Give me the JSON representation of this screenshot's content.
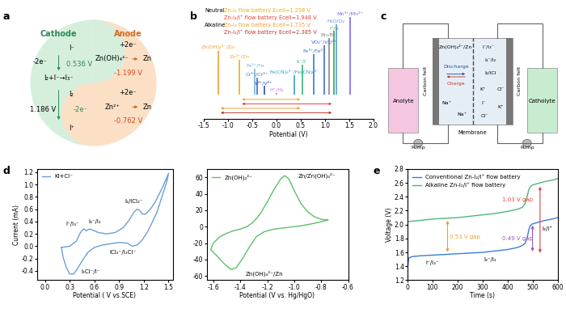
{
  "panel_labels": [
    "a",
    "b",
    "c",
    "d",
    "e"
  ],
  "panel_a": {
    "cathode": {
      "title": "Cathode",
      "items": [
        "I⁻",
        "-2e⁻",
        "0.536 V",
        "I₂+I⁻→I₃⁻",
        "I₂",
        "-2e⁻",
        "1.186 V",
        "I⁺"
      ]
    },
    "anode": {
      "title": "Anode",
      "items": [
        "+2e⁻",
        "Zn(OH)₄²⁻",
        "Zn",
        "-1.199 V",
        "+2e⁻",
        "Zn²⁺",
        "Zn",
        "-0.762 V"
      ]
    }
  },
  "panel_c": {
    "tanks": [
      "Anolyte",
      "Catholyte"
    ],
    "electrodes": [
      "Carbon felt",
      "Carbon felt"
    ],
    "couples": [
      "Zn(OH)₄²⁻/Zn",
      "I⁻/I₃⁻",
      "I₃⁻/I₂",
      "I₂/ICl"
    ],
    "modes": [
      "Discharge",
      "Charge"
    ],
    "ions": [
      "Na⁺",
      "Na⁺",
      "K⁺",
      "K⁺",
      "Cl⁻",
      "Cl⁻",
      "I⁻"
    ],
    "membrane": "Membrane",
    "pumps": [
      "Pump",
      "Pump"
    ]
  },
  "chart_data": [
    {
      "type": "potential_lines",
      "xlabel": "Potential (V)",
      "xlim": [
        -1.5,
        2.0
      ],
      "xticks": [
        -1.5,
        -1.0,
        -0.5,
        0.0,
        0.5,
        1.0,
        1.5,
        2.0
      ],
      "tick_labels": "x",
      "couples": [
        {
          "label": "Zn(OH)₄²⁻/Zn",
          "value": -1.199,
          "color": "#f0a030"
        },
        {
          "label": "Zn²⁺/Zn",
          "value": -0.762,
          "color": "#e8b020"
        },
        {
          "label": "Fe²⁺/Fe",
          "value": -0.447,
          "color": "#7fb3e0"
        },
        {
          "label": "Cr³⁺/Cr²⁺",
          "value": -0.407,
          "color": "#3b6fc9"
        },
        {
          "label": "V³⁺/V²⁺",
          "value": -0.255,
          "color": "#1f4eb4"
        },
        {
          "label": "H⁺/H₂",
          "value": 0.0,
          "color": "#c878d8"
        },
        {
          "label": "Fe(CN)₆³⁻/Fe(CN)₆⁴⁻",
          "value": 0.361,
          "color": "#30a0d0"
        },
        {
          "label": "I₃⁻/I⁻",
          "value": 0.536,
          "color": "#3cb371"
        },
        {
          "label": "Fe³⁺/Fe²⁺",
          "value": 0.771,
          "color": "#2e7fd0"
        },
        {
          "label": "VO₂⁺/VO²⁺",
          "value": 0.991,
          "color": "#4169e1"
        },
        {
          "label": "Br₂/Br⁻",
          "value": 1.087,
          "color": "#888888"
        },
        {
          "label": "I⁺/I₂",
          "value": 1.186,
          "color": "#2ca25f"
        },
        {
          "label": "H₂O/O₂",
          "value": 1.23,
          "color": "#5a9bd5"
        },
        {
          "label": "Mn³⁺/Mn²⁺",
          "value": 1.51,
          "color": "#7b68ee"
        }
      ],
      "groups": [
        {
          "name": "Neutral",
          "batteries": [
            {
              "text": "Zn-I₂ flow battery Ecell=1.298 V",
              "from": -0.762,
              "to": 0.536,
              "color": "#e8b020"
            },
            {
              "text": "Zn-I₂/I⁺ flow battery Ecell=1.948 V",
              "from": -0.762,
              "to": 1.186,
              "color": "#e8403a"
            }
          ]
        },
        {
          "name": "Alkaline",
          "batteries": [
            {
              "text": "Zn-I₂ flow battery Ecell=1.735 V",
              "from": -1.199,
              "to": 0.536,
              "color": "#f0a030"
            },
            {
              "text": "Zn-I₂/I⁺ flow battery Ecell=2.385 V",
              "from": -1.199,
              "to": 1.186,
              "color": "#c0392b"
            }
          ]
        }
      ]
    },
    {
      "type": "line",
      "xlabel": "Potential ( V vs.SCE)",
      "ylabel": "Current (mA)",
      "xlim": [
        -0.1,
        1.55
      ],
      "xticks": [
        0.0,
        0.3,
        0.6,
        0.9,
        1.2,
        1.5
      ],
      "ylim": [
        -0.55,
        1.25
      ],
      "yticks": [
        -0.4,
        -0.2,
        0.0,
        0.2,
        0.4,
        0.6,
        0.8,
        1.0,
        1.2
      ],
      "legend": "upper left",
      "annotations": [
        "I⁻/I₃⁻",
        "I₃⁻/I₂",
        "I₂/ICl₂⁻",
        "ICl₂⁻/I₂Cl⁻",
        "I₂Cl⁻/I⁻"
      ],
      "series": [
        {
          "name": "KI+Cl⁻",
          "color": "#6a9fd8",
          "x": [
            0.2,
            0.3,
            0.38,
            0.43,
            0.47,
            0.5,
            0.54,
            0.58,
            0.65,
            0.75,
            0.85,
            0.95,
            1.02,
            1.08,
            1.12,
            1.15,
            1.18,
            1.22,
            1.28,
            1.34,
            1.4,
            1.45,
            1.5,
            1.48,
            1.42,
            1.36,
            1.3,
            1.24,
            1.18,
            1.12,
            1.06,
            1.0,
            0.9,
            0.8,
            0.7,
            0.6,
            0.52,
            0.46,
            0.4,
            0.35,
            0.3,
            0.26,
            0.22,
            0.2
          ],
          "values": [
            -0.02,
            0.0,
            0.08,
            0.22,
            0.28,
            0.25,
            0.28,
            0.26,
            0.22,
            0.2,
            0.22,
            0.3,
            0.42,
            0.55,
            0.6,
            0.58,
            0.52,
            0.52,
            0.6,
            0.72,
            0.88,
            1.02,
            1.18,
            1.05,
            0.8,
            0.55,
            0.38,
            0.22,
            0.1,
            0.02,
            0.0,
            0.05,
            0.06,
            0.04,
            0.02,
            -0.02,
            -0.1,
            -0.22,
            -0.35,
            -0.45,
            -0.45,
            -0.35,
            -0.18,
            -0.02
          ]
        }
      ]
    },
    {
      "type": "line",
      "xlabel": "Potential (V vs. Hg/HgO)",
      "xlim": [
        -1.65,
        -0.6
      ],
      "xticks": [
        -1.6,
        -1.4,
        -1.2,
        -1.0,
        -0.8,
        -0.6
      ],
      "ylim": [
        -65,
        70
      ],
      "yticks": [
        -60,
        -40,
        -20,
        0,
        20,
        40,
        60
      ],
      "legend": "upper left",
      "annotations": [
        "Zn/Zn(OH)₄²⁻",
        "Zn(OH)₄²⁻/Zn"
      ],
      "series": [
        {
          "name": "Zn(OH)₄²⁻",
          "color": "#5cc06a",
          "x": [
            -0.75,
            -0.85,
            -0.95,
            -1.05,
            -1.15,
            -1.22,
            -1.28,
            -1.33,
            -1.38,
            -1.43,
            -1.47,
            -1.52,
            -1.57,
            -1.62,
            -1.6,
            -1.55,
            -1.5,
            -1.45,
            -1.4,
            -1.35,
            -1.3,
            -1.25,
            -1.2,
            -1.15,
            -1.1,
            -1.07,
            -1.04,
            -1.0,
            -0.95,
            -0.9,
            -0.85,
            -0.8,
            -0.75
          ],
          "values": [
            8,
            4,
            1,
            -1,
            -3,
            -6,
            -12,
            -24,
            -38,
            -50,
            -52,
            -45,
            -36,
            -28,
            -20,
            -12,
            -8,
            -5,
            -3,
            0,
            6,
            16,
            30,
            45,
            58,
            62,
            58,
            44,
            28,
            18,
            12,
            9,
            8
          ]
        }
      ]
    },
    {
      "type": "line",
      "xlabel": "Time (s)",
      "ylabel": "Voltage (V)",
      "xlim": [
        0,
        600
      ],
      "xticks": [
        0,
        100,
        200,
        300,
        400,
        500,
        600
      ],
      "ylim": [
        1.2,
        2.8
      ],
      "yticks": [
        1.2,
        1.4,
        1.6,
        1.8,
        2.0,
        2.2,
        2.4,
        2.6,
        2.8
      ],
      "legend": "upper left",
      "annotations": [
        "0.53 V gap",
        "1.03 V gap",
        "0.49 V gap",
        "I⁻/I₃⁻",
        "I₃⁻/I₂",
        "I₂/I⁺"
      ],
      "series": [
        {
          "name": "Conventional Zn-I₂/I⁺ flow battery",
          "color": "#3b7dd8",
          "x": [
            0,
            5,
            20,
            50,
            100,
            150,
            200,
            250,
            300,
            350,
            400,
            440,
            460,
            470,
            478,
            485,
            490,
            500,
            520,
            550,
            580,
            600
          ],
          "values": [
            1.38,
            1.52,
            1.54,
            1.55,
            1.56,
            1.57,
            1.58,
            1.59,
            1.6,
            1.62,
            1.64,
            1.67,
            1.7,
            1.73,
            1.8,
            1.92,
            1.98,
            2.01,
            2.03,
            2.06,
            2.08,
            2.1
          ]
        },
        {
          "name": "Alkaline Zn-I₂/I⁺ flow battery",
          "color": "#4cb87a",
          "x": [
            0,
            20,
            50,
            100,
            150,
            200,
            250,
            300,
            350,
            400,
            440,
            460,
            470,
            478,
            485,
            490,
            500,
            520,
            550,
            580,
            600
          ],
          "values": [
            2.04,
            2.05,
            2.06,
            2.08,
            2.09,
            2.1,
            2.12,
            2.14,
            2.16,
            2.19,
            2.22,
            2.25,
            2.3,
            2.4,
            2.5,
            2.54,
            2.57,
            2.59,
            2.62,
            2.64,
            2.66
          ]
        }
      ]
    }
  ]
}
